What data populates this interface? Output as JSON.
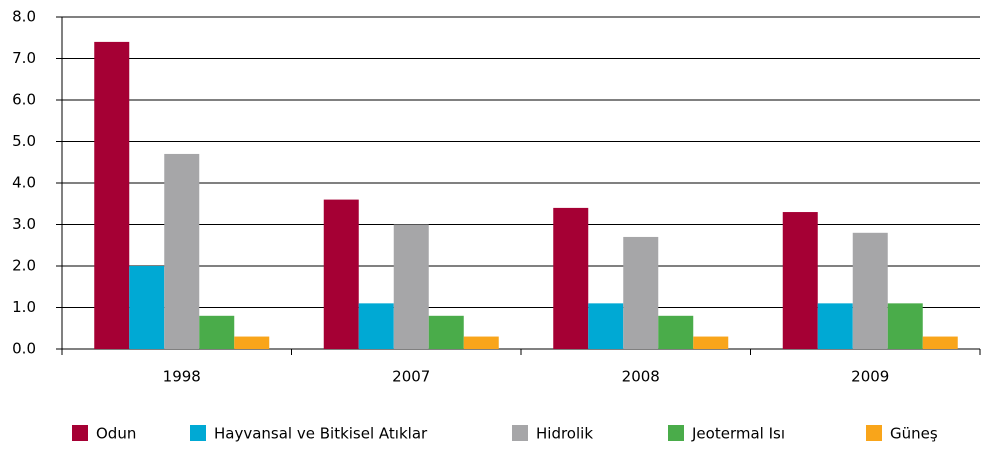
{
  "chart_data": {
    "type": "bar",
    "categories": [
      "1998",
      "2007",
      "2008",
      "2009"
    ],
    "series": [
      {
        "name": "Odun",
        "color": "#a50034",
        "values": [
          7.4,
          3.6,
          3.4,
          3.3
        ]
      },
      {
        "name": "Hayvansal ve Bitkisel Atıklar",
        "color": "#00a9d4",
        "values": [
          2.0,
          1.1,
          1.1,
          1.1
        ]
      },
      {
        "name": "Hidrolik",
        "color": "#a6a6a8",
        "values": [
          4.7,
          3.0,
          2.7,
          2.8
        ]
      },
      {
        "name": "Jeotermal Isı",
        "color": "#4aac4a",
        "values": [
          0.8,
          0.8,
          0.8,
          1.1
        ]
      },
      {
        "name": "Güneş",
        "color": "#f9a51a",
        "values": [
          0.3,
          0.3,
          0.3,
          0.3
        ]
      }
    ],
    "ylim": [
      0,
      8
    ],
    "yticks": [
      {
        "value": 0,
        "label": "0.0"
      },
      {
        "value": 1,
        "label": "1.0"
      },
      {
        "value": 2,
        "label": "2.0"
      },
      {
        "value": 3,
        "label": "3.0"
      },
      {
        "value": 4,
        "label": "4.0"
      },
      {
        "value": 5,
        "label": "5.0"
      },
      {
        "value": 6,
        "label": "6.0"
      },
      {
        "value": 7,
        "label": "7.0"
      },
      {
        "value": 8,
        "label": "8.0"
      }
    ],
    "grid": true,
    "legend": "bottom"
  }
}
